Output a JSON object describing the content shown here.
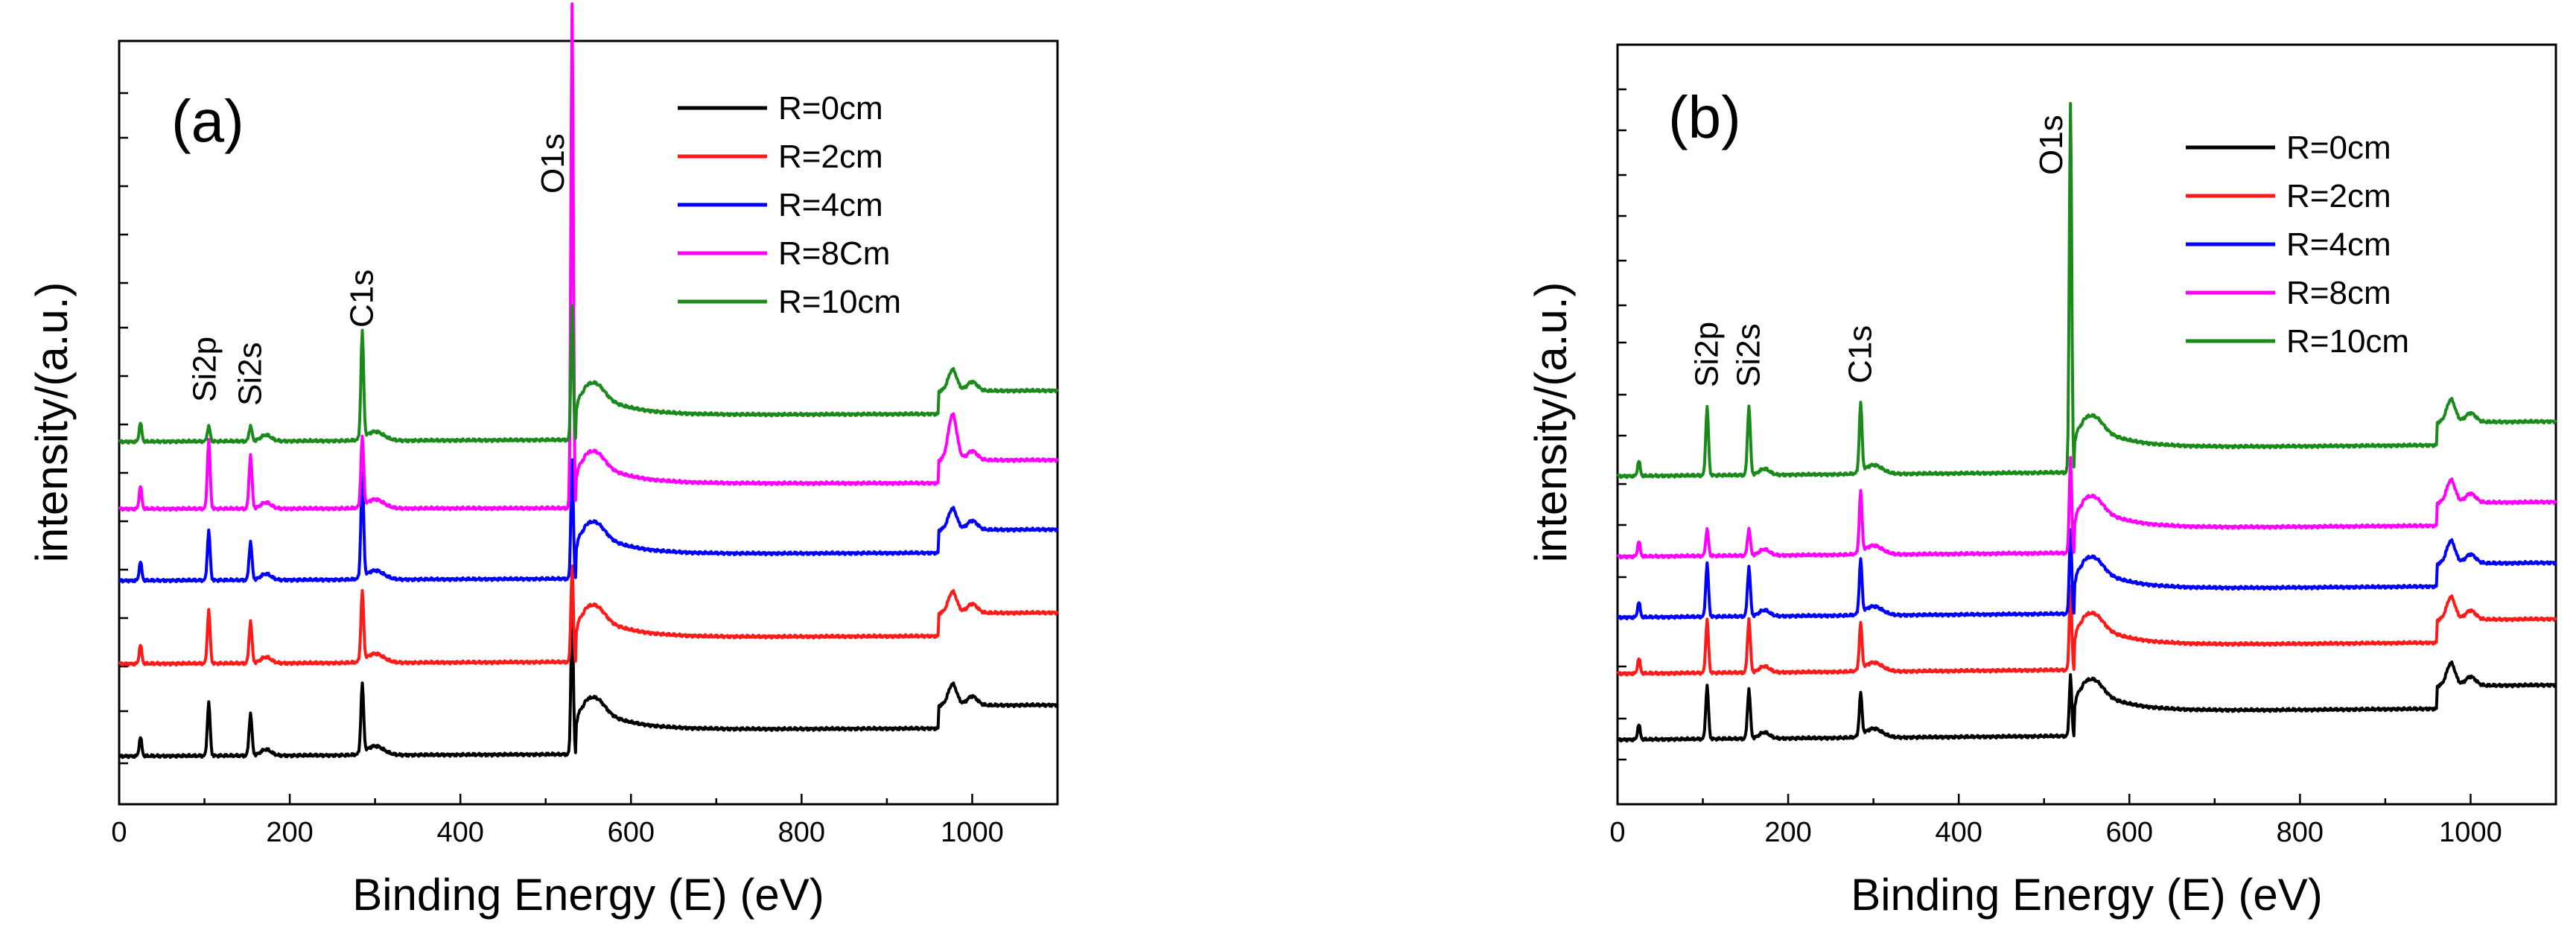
{
  "chart_data": [
    {
      "type": "line",
      "panel_label": "(a)",
      "xlabel": "Binding Energy (E) (eV)",
      "ylabel": "intensity/(a.u.)",
      "xlim": [
        0,
        1100
      ],
      "ylim": [
        0,
        100
      ],
      "x_ticks": [
        "0",
        "200",
        "400",
        "600",
        "800",
        "1000"
      ],
      "legend_position": "top-right",
      "series": [
        {
          "name": "R=0cm",
          "color": "#000000",
          "baseline": 6.3,
          "slope": 0.5,
          "peaks": {
            "si2p": 7,
            "si2s": 5.5,
            "c1s": 9,
            "o1s": 19,
            "cl": 2.5,
            "al": 2.8
          }
        },
        {
          "name": "R=2cm",
          "color": "#ff1a1a",
          "baseline": 18.4,
          "slope": 0.5,
          "peaks": {
            "si2p": 7,
            "si2s": 5.5,
            "c1s": 9,
            "o1s": 12.5,
            "cl": 2.5,
            "al": 2.8
          }
        },
        {
          "name": "R=4cm",
          "color": "#0000ff",
          "baseline": 29.3,
          "slope": 0.5,
          "peaks": {
            "si2p": 6.5,
            "si2s": 5,
            "c1s": 13.5,
            "o1s": 15.5,
            "cl": 2.5,
            "al": 2.8
          }
        },
        {
          "name": "R=8Cm",
          "color": "#ff00ff",
          "baseline": 38.7,
          "slope": 0.2,
          "peaks": {
            "si2p": 9,
            "si2s": 7,
            "c1s": 9,
            "o1s": 66,
            "cl": 3,
            "al": 6
          }
        },
        {
          "name": "R=10cm",
          "color": "#1a8a1a",
          "baseline": 47.5,
          "slope": 0.5,
          "peaks": {
            "si2p": 2,
            "si2s": 2,
            "c1s": 14,
            "o1s": 17.5,
            "cl": 2.5,
            "al": 2.8
          }
        }
      ],
      "annotations": [
        {
          "text": "Si2p",
          "x": 105
        },
        {
          "text": "Si2s",
          "x": 154
        },
        {
          "text": "C1s",
          "x": 285
        },
        {
          "text": "O1s",
          "x": 531
        }
      ]
    },
    {
      "type": "line",
      "panel_label": "(b)",
      "xlabel": "Binding Energy (E) (eV)",
      "ylabel": "intensity/(a.u.)",
      "xlim": [
        0,
        1100
      ],
      "ylim": [
        0,
        100
      ],
      "x_ticks": [
        "0",
        "200",
        "400",
        "600",
        "800",
        "1000"
      ],
      "legend_position": "top-right",
      "series": [
        {
          "name": "R=0cm",
          "color": "#000000",
          "baseline": 8.5,
          "slope": 1.0,
          "peaks": {
            "si2p": 7,
            "si2s": 6.5,
            "c1s": 5.5,
            "o1s": 8,
            "cl": 2,
            "al": 3
          }
        },
        {
          "name": "R=2cm",
          "color": "#ff1a1a",
          "baseline": 17.2,
          "slope": 1.0,
          "peaks": {
            "si2p": 7,
            "si2s": 7,
            "c1s": 6,
            "o1s": 11,
            "cl": 2,
            "al": 3
          }
        },
        {
          "name": "R=4cm",
          "color": "#0000ff",
          "baseline": 24.6,
          "slope": 1.0,
          "peaks": {
            "si2p": 7,
            "si2s": 6.5,
            "c1s": 7,
            "o1s": 11,
            "cl": 2,
            "al": 3
          }
        },
        {
          "name": "R=8cm",
          "color": "#ff00ff",
          "baseline": 32.6,
          "slope": 1.0,
          "peaks": {
            "si2p": 3.5,
            "si2s": 3.5,
            "c1s": 8,
            "o1s": 12.5,
            "cl": 2,
            "al": 3
          }
        },
        {
          "name": "R=10cm",
          "color": "#1a8a1a",
          "baseline": 43.2,
          "slope": 1.0,
          "peaks": {
            "si2p": 9,
            "si2s": 9,
            "c1s": 9,
            "o1s": 48.5,
            "cl": 2,
            "al": 3
          }
        }
      ],
      "annotations": [
        {
          "text": "Si2p",
          "x": 105
        },
        {
          "text": "Si2s",
          "x": 154
        },
        {
          "text": "C1s",
          "x": 285
        },
        {
          "text": "O1s",
          "x": 531
        }
      ]
    }
  ]
}
